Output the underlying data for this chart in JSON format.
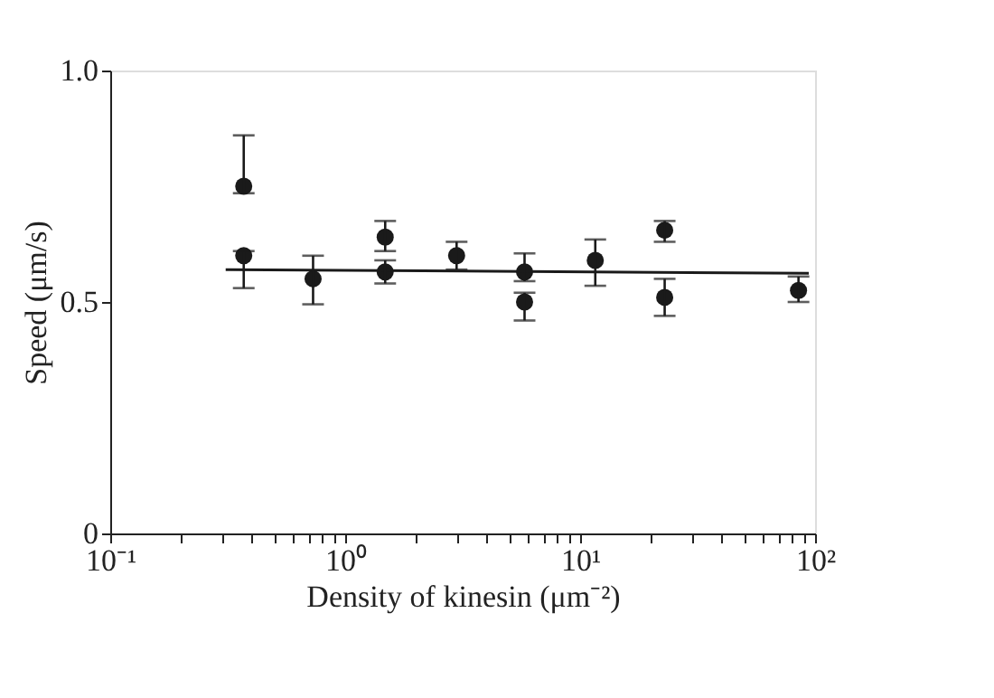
{
  "chart_data": {
    "type": "scatter",
    "xlabel": "Density of kinesin (μm⁻²)",
    "ylabel": "Speed (μm/s)",
    "log": "x",
    "xlim": [
      0.1,
      100
    ],
    "ylim": [
      0,
      1.0
    ],
    "xticks": [
      {
        "value": 0.1,
        "label": "10⁻¹"
      },
      {
        "value": 0.2,
        "label": null
      },
      {
        "value": 0.3,
        "label": null
      },
      {
        "value": 0.4,
        "label": null
      },
      {
        "value": 0.5,
        "label": null
      },
      {
        "value": 0.6,
        "label": null
      },
      {
        "value": 0.7,
        "label": null
      },
      {
        "value": 0.8,
        "label": null
      },
      {
        "value": 0.9,
        "label": null
      },
      {
        "value": 1,
        "label": "10⁰"
      },
      {
        "value": 2,
        "label": null
      },
      {
        "value": 3,
        "label": null
      },
      {
        "value": 4,
        "label": null
      },
      {
        "value": 5,
        "label": null
      },
      {
        "value": 6,
        "label": null
      },
      {
        "value": 7,
        "label": null
      },
      {
        "value": 8,
        "label": null
      },
      {
        "value": 9,
        "label": null
      },
      {
        "value": 10,
        "label": "10¹"
      },
      {
        "value": 20,
        "label": null
      },
      {
        "value": 30,
        "label": null
      },
      {
        "value": 40,
        "label": null
      },
      {
        "value": 50,
        "label": null
      },
      {
        "value": 60,
        "label": null
      },
      {
        "value": 70,
        "label": null
      },
      {
        "value": 80,
        "label": null
      },
      {
        "value": 90,
        "label": null
      },
      {
        "value": 100,
        "label": "10²"
      }
    ],
    "yticks": [
      0,
      {
        "value": 0.5,
        "label": "0.5"
      },
      {
        "value": 1.0,
        "label": "1.0"
      }
    ],
    "grid": false,
    "series": [
      {
        "marker": "circle",
        "color": "#1a1a1a",
        "x": [
          0.37,
          0.37,
          0.73,
          1.48,
          1.48,
          2.98,
          5.8,
          5.8,
          11.6,
          22.9,
          22.9,
          85
        ],
        "values": [
          0.75,
          0.6,
          0.55,
          0.64,
          0.565,
          0.6,
          0.565,
          0.5,
          0.59,
          0.655,
          0.51,
          0.525
        ],
        "errors": [
          [
            0.735,
            0.86
          ],
          [
            0.53,
            0.61
          ],
          [
            0.495,
            0.6
          ],
          [
            0.61,
            0.675
          ],
          [
            0.54,
            0.59
          ],
          [
            0.57,
            0.63
          ],
          [
            0.545,
            0.605
          ],
          [
            0.46,
            0.52
          ],
          [
            0.535,
            0.635
          ],
          [
            0.63,
            0.675
          ],
          [
            0.47,
            0.55
          ],
          [
            0.5,
            0.555
          ]
        ]
      },
      {
        "type": "line",
        "marker": "none",
        "line_style": "solid",
        "color": "#1a1a1a",
        "x": [
          0.31,
          94
        ],
        "values": [
          0.57,
          0.562
        ]
      }
    ]
  }
}
